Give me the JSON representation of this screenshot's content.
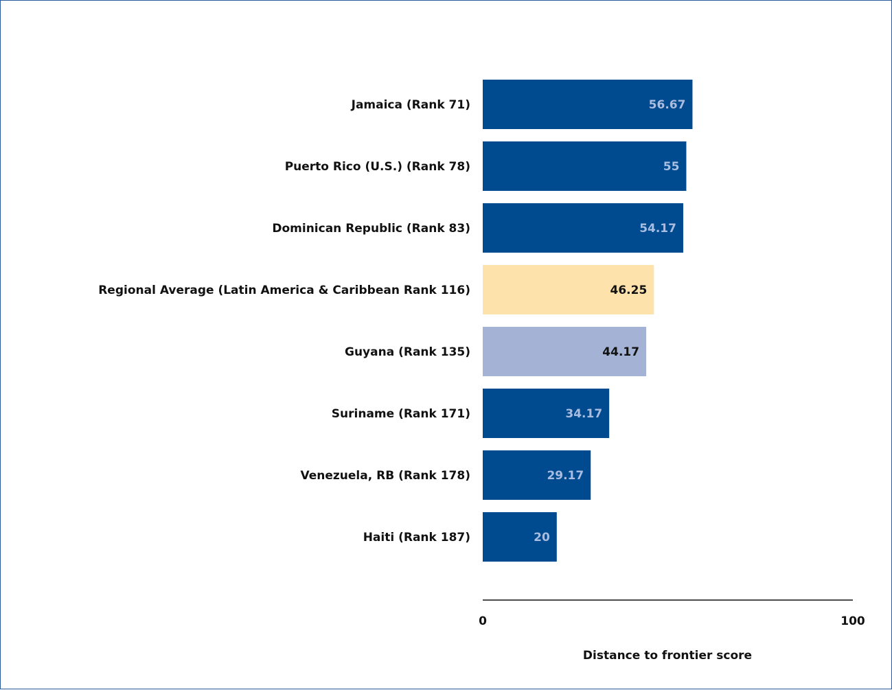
{
  "chart_data": {
    "type": "bar",
    "orientation": "horizontal",
    "categories": [
      "Jamaica (Rank 71)",
      "Puerto Rico (U.S.) (Rank 78)",
      "Dominican Republic (Rank 83)",
      "Regional Average (Latin America & Caribbean Rank 116)",
      "Guyana (Rank 135)",
      "Suriname (Rank 171)",
      "Venezuela, RB (Rank 178)",
      "Haiti (Rank 187)"
    ],
    "values": [
      56.67,
      55,
      54.17,
      46.25,
      44.17,
      34.17,
      29.17,
      20
    ],
    "value_labels": [
      "56.67",
      "55",
      "54.17",
      "46.25",
      "44.17",
      "34.17",
      "29.17",
      "20"
    ],
    "bar_colors": [
      "#004a8f",
      "#004a8f",
      "#004a8f",
      "#fde3ab",
      "#a4b3d5",
      "#004a8f",
      "#004a8f",
      "#004a8f"
    ],
    "value_label_colors": [
      "#a9bde0",
      "#a9bde0",
      "#a9bde0",
      "#111111",
      "#111111",
      "#a9bde0",
      "#a9bde0",
      "#a9bde0"
    ],
    "xlim": [
      0,
      100
    ],
    "x_ticks": [
      "0",
      "100"
    ],
    "xlabel": "Distance to frontier score",
    "title": "",
    "ylabel": "",
    "grid": false,
    "legend": "none"
  }
}
